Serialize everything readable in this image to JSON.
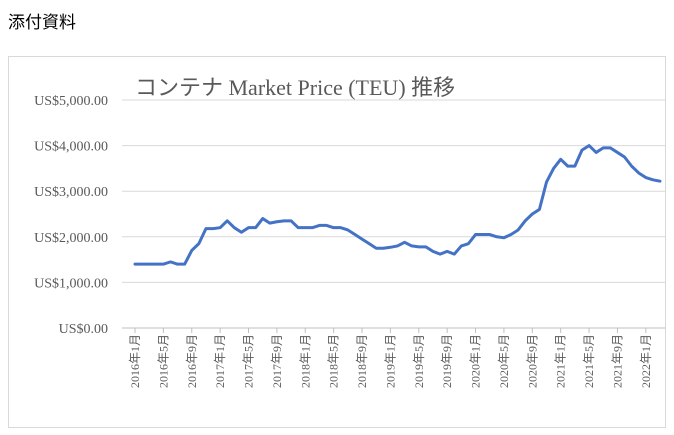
{
  "header": {
    "title": "添付資料"
  },
  "chart_data": {
    "type": "line",
    "title": "コンテナ Market Price (TEU) 推移",
    "categories": [
      "2016年1月",
      null,
      null,
      null,
      "2016年5月",
      null,
      null,
      null,
      "2016年9月",
      null,
      null,
      null,
      "2017年1月",
      null,
      null,
      null,
      "2017年5月",
      null,
      null,
      null,
      "2017年9月",
      null,
      null,
      null,
      "2018年1月",
      null,
      null,
      null,
      "2018年5月",
      null,
      null,
      null,
      "2018年9月",
      null,
      null,
      null,
      "2019年1月",
      null,
      null,
      null,
      "2019年5月",
      null,
      null,
      null,
      "2019年9月",
      null,
      null,
      null,
      "2020年1月",
      null,
      null,
      null,
      "2020年5月",
      null,
      null,
      null,
      "2020年9月",
      null,
      null,
      null,
      "2021年1月",
      null,
      null,
      null,
      "2021年5月",
      null,
      null,
      null,
      "2021年9月",
      null,
      null,
      null,
      "2022年1月",
      null,
      null
    ],
    "series": [
      {
        "name": "Market Price (TEU)",
        "color": "#4472c4",
        "values": [
          1400,
          1400,
          1400,
          1400,
          1400,
          1450,
          1400,
          1400,
          1700,
          1850,
          2180,
          2180,
          2200,
          2350,
          2200,
          2100,
          2200,
          2200,
          2400,
          2300,
          2330,
          2350,
          2350,
          2200,
          2200,
          2200,
          2250,
          2250,
          2200,
          2200,
          2150,
          2050,
          1950,
          1850,
          1750,
          1750,
          1770,
          1800,
          1880,
          1800,
          1780,
          1780,
          1680,
          1620,
          1680,
          1620,
          1800,
          1850,
          2050,
          2050,
          2050,
          2000,
          1980,
          2050,
          2150,
          2350,
          2500,
          2600,
          3200,
          3500,
          3700,
          3550,
          3550,
          3900,
          4000,
          3850,
          3950,
          3950,
          3850,
          3750,
          3550,
          3400,
          3300,
          3250,
          3220
        ]
      }
    ],
    "ylim": [
      0,
      5000
    ],
    "yticks": [
      {
        "value": 0,
        "label": "US$0.00"
      },
      {
        "value": 1000,
        "label": "US$1,000.00"
      },
      {
        "value": 2000,
        "label": "US$2,000.00"
      },
      {
        "value": 3000,
        "label": "US$3,000.00"
      },
      {
        "value": 4000,
        "label": "US$4,000.00"
      },
      {
        "value": 5000,
        "label": "US$5,000.00"
      }
    ],
    "grid": true
  }
}
